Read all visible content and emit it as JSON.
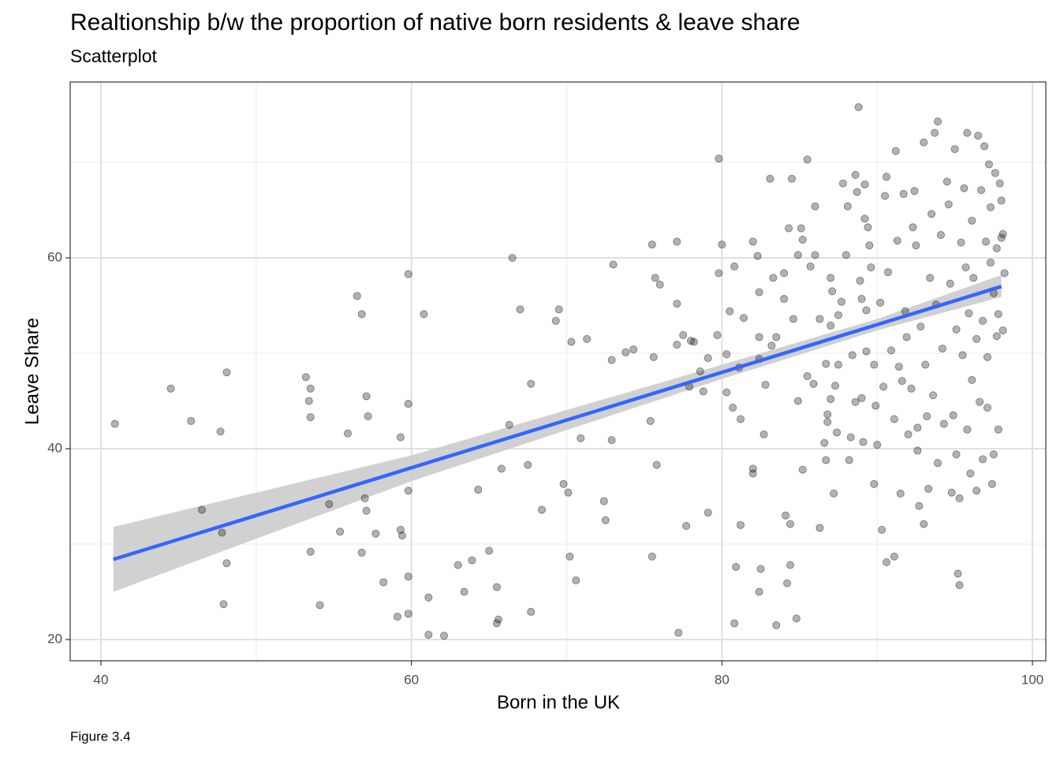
{
  "chart_data": {
    "type": "scatter",
    "title": "Realtionship b/w the proportion of native born residents & leave share",
    "subtitle": "Scatterplot",
    "x_label": "Born in the UK",
    "y_label": "Leave Share",
    "caption": "Figure 3.4",
    "xlim": [
      38.02,
      100.86
    ],
    "ylim": [
      17.77,
      78.43
    ],
    "xticks": [
      40,
      60,
      80,
      100
    ],
    "yticks": [
      20,
      40,
      60
    ],
    "x_minor_grid": [
      50,
      70,
      90
    ],
    "y_minor_grid": [
      30,
      50,
      70
    ],
    "grid": true,
    "color": "#000000",
    "x": [
      40.9,
      44.5,
      45.8,
      46.5,
      47.7,
      47.8,
      48.1,
      48.1,
      47.9,
      53.2,
      53.4,
      53.5,
      53.5,
      53.5,
      54.1,
      54.7,
      55.4,
      55.9,
      56.5,
      56.8,
      56.8,
      57.1,
      57.2,
      57.0,
      57.1,
      57.7,
      58.2,
      59.1,
      59.3,
      59.4,
      59.3,
      59.8,
      59.8,
      59.8,
      59.8,
      59.8,
      60.8,
      61.1,
      61.1,
      62.1,
      63.0,
      63.4,
      63.9,
      64.3,
      65.0,
      65.5,
      65.6,
      65.5,
      65.8,
      66.3,
      66.5,
      67.0,
      67.5,
      67.7,
      67.7,
      68.4,
      69.3,
      69.5,
      69.8,
      70.1,
      70.2,
      70.3,
      70.6,
      70.9,
      71.3,
      72.4,
      72.5,
      72.9,
      72.9,
      73.0,
      73.8,
      74.3,
      75.4,
      75.5,
      75.5,
      75.6,
      75.7,
      76.0,
      75.8,
      77.1,
      77.1,
      77.1,
      77.5,
      77.7,
      77.2,
      77.9,
      78.0,
      78.2,
      78.6,
      78.8,
      79.1,
      79.1,
      79.7,
      79.8,
      79.8,
      80.0,
      80.3,
      80.3,
      80.5,
      80.7,
      80.8,
      80.8,
      80.9,
      81.1,
      81.2,
      81.2,
      81.4,
      82.0,
      82.0,
      82.0,
      82.3,
      82.4,
      82.4,
      82.4,
      82.4,
      82.5,
      82.7,
      82.8,
      83.1,
      83.2,
      83.3,
      83.5,
      83.5,
      84.0,
      84.0,
      84.1,
      84.2,
      84.3,
      84.4,
      84.4,
      84.5,
      84.6,
      84.8,
      84.9,
      85.1,
      85.2,
      84.9,
      85.2,
      85.5,
      85.5,
      85.7,
      85.9,
      86.0,
      86.0,
      86.3,
      86.3,
      86.6,
      86.7,
      86.7,
      86.8,
      86.8,
      87.0,
      87.0,
      87.0,
      87.1,
      87.2,
      87.3,
      87.4,
      87.5,
      87.5,
      87.7,
      87.8,
      88.0,
      88.1,
      88.2,
      88.3,
      88.4,
      88.6,
      88.6,
      88.8,
      88.7,
      88.9,
      89.0,
      89.0,
      89.1,
      89.2,
      89.2,
      89.3,
      89.3,
      89.4,
      89.5,
      89.6,
      89.8,
      89.8,
      89.9,
      90.0,
      90.2,
      90.3,
      90.5,
      90.4,
      90.6,
      90.6,
      90.7,
      90.9,
      91.1,
      91.1,
      91.2,
      91.3,
      91.4,
      91.5,
      91.6,
      91.7,
      91.8,
      91.9,
      92.0,
      92.2,
      92.3,
      92.4,
      92.5,
      92.6,
      92.6,
      92.7,
      92.8,
      93.0,
      93.0,
      93.1,
      93.2,
      93.3,
      93.4,
      93.5,
      93.6,
      93.7,
      93.8,
      93.9,
      93.9,
      94.1,
      94.2,
      94.3,
      94.5,
      94.6,
      94.7,
      94.8,
      94.9,
      95.0,
      95.1,
      95.1,
      95.2,
      95.3,
      95.3,
      95.4,
      95.5,
      95.6,
      95.7,
      95.8,
      95.8,
      95.9,
      96.0,
      96.1,
      96.1,
      96.2,
      96.4,
      96.4,
      96.5,
      96.6,
      96.7,
      96.8,
      96.8,
      96.9,
      97.0,
      97.1,
      97.1,
      97.2,
      97.3,
      97.3,
      97.4,
      97.5,
      97.5,
      97.6,
      97.7,
      97.7,
      97.8,
      97.8,
      97.9,
      98.0,
      98.0,
      98.2,
      98.1,
      98.1
    ],
    "y": [
      42.6,
      46.3,
      42.9,
      33.6,
      41.8,
      31.2,
      48.0,
      28.0,
      23.7,
      47.5,
      45.0,
      46.3,
      43.3,
      29.2,
      23.6,
      34.2,
      31.3,
      41.6,
      56.0,
      54.1,
      29.1,
      45.5,
      43.4,
      34.8,
      33.5,
      31.1,
      26.0,
      22.4,
      31.5,
      30.9,
      41.2,
      58.3,
      44.7,
      35.6,
      26.6,
      22.7,
      54.1,
      24.4,
      20.5,
      20.4,
      27.8,
      25.0,
      28.3,
      35.7,
      29.3,
      25.5,
      22.1,
      21.7,
      37.9,
      42.5,
      60.0,
      54.6,
      38.3,
      46.8,
      22.9,
      33.6,
      53.4,
      54.6,
      36.3,
      35.4,
      28.7,
      51.2,
      26.2,
      41.1,
      51.5,
      34.5,
      32.5,
      49.3,
      40.9,
      59.3,
      50.1,
      50.4,
      42.9,
      61.4,
      28.7,
      49.6,
      57.9,
      57.2,
      38.3,
      55.2,
      61.7,
      50.9,
      51.9,
      31.9,
      20.7,
      46.5,
      51.3,
      51.2,
      48.1,
      46.0,
      33.3,
      49.5,
      51.9,
      58.4,
      70.4,
      61.4,
      45.9,
      49.9,
      54.4,
      44.3,
      59.1,
      21.7,
      27.6,
      48.5,
      43.1,
      32.0,
      53.7,
      61.7,
      37.9,
      37.4,
      60.2,
      56.4,
      51.7,
      49.4,
      25.0,
      27.4,
      41.5,
      46.7,
      68.3,
      50.8,
      57.9,
      21.5,
      51.7,
      58.4,
      55.7,
      33.0,
      25.9,
      63.1,
      32.1,
      27.8,
      68.3,
      53.6,
      22.2,
      45.0,
      63.1,
      37.8,
      60.3,
      61.9,
      70.3,
      47.6,
      59.1,
      46.8,
      60.3,
      65.4,
      31.7,
      53.6,
      40.6,
      38.8,
      48.9,
      43.6,
      42.8,
      45.2,
      52.9,
      57.9,
      56.5,
      35.3,
      46.6,
      41.7,
      48.8,
      54.0,
      55.4,
      67.8,
      60.3,
      65.4,
      38.8,
      41.2,
      49.8,
      68.7,
      44.9,
      75.8,
      66.9,
      57.6,
      55.7,
      45.3,
      40.7,
      67.7,
      64.1,
      50.2,
      54.5,
      63.2,
      61.3,
      59.0,
      36.3,
      48.8,
      44.5,
      40.4,
      55.3,
      31.5,
      66.5,
      46.5,
      68.5,
      28.1,
      58.5,
      50.3,
      43.1,
      28.7,
      71.2,
      61.8,
      48.6,
      35.3,
      47.1,
      66.7,
      54.4,
      51.7,
      41.5,
      46.3,
      63.2,
      67.0,
      61.3,
      39.8,
      42.2,
      34.0,
      52.8,
      72.1,
      32.1,
      48.8,
      43.4,
      35.8,
      57.9,
      64.6,
      45.6,
      73.1,
      55.1,
      74.3,
      38.5,
      62.4,
      50.5,
      42.6,
      68.0,
      65.6,
      57.3,
      35.4,
      43.5,
      71.4,
      52.5,
      39.4,
      26.9,
      25.7,
      34.8,
      61.6,
      49.8,
      67.3,
      59.0,
      73.1,
      42.0,
      54.2,
      37.4,
      47.2,
      63.9,
      57.9,
      35.6,
      51.5,
      72.8,
      44.9,
      67.1,
      53.4,
      38.9,
      71.7,
      61.7,
      49.6,
      44.3,
      69.8,
      65.3,
      59.5,
      36.3,
      56.3,
      39.4,
      68.9,
      61.0,
      51.8,
      42.0,
      54.1,
      67.8,
      66.0,
      62.1,
      58.4,
      52.4,
      62.5
    ],
    "fit": {
      "color": "#3366ff",
      "x": [
        40.8,
        98
      ],
      "y": [
        28.4,
        57
      ]
    },
    "band": {
      "color": "#cccccc",
      "x": [
        40.8,
        60,
        80,
        90,
        98
      ],
      "lower": [
        25.0,
        36.6,
        47.3,
        52.4,
        55.9
      ],
      "upper": [
        31.8,
        39.3,
        48.8,
        53.6,
        58.2
      ]
    }
  }
}
